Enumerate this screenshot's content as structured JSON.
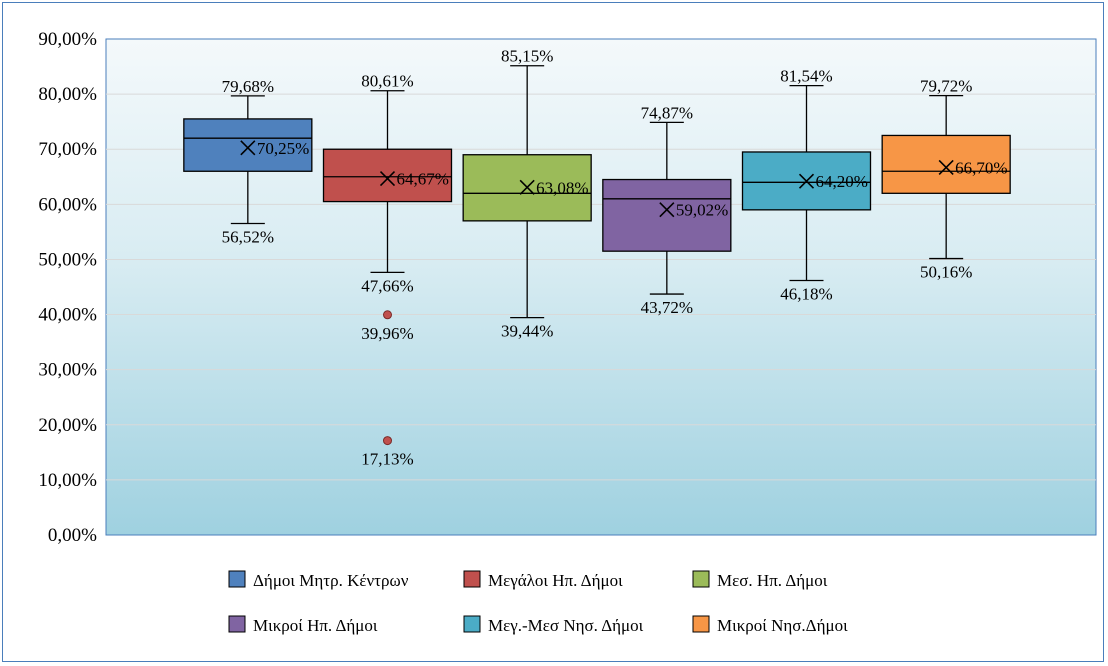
{
  "chart_data": {
    "type": "boxplot",
    "title": "",
    "xlabel": "",
    "ylabel": "",
    "ylim": [
      0,
      90
    ],
    "y_ticks": [
      "0,00%",
      "10,00%",
      "20,00%",
      "30,00%",
      "40,00%",
      "50,00%",
      "60,00%",
      "70,00%",
      "80,00%",
      "90,00%"
    ],
    "grid": true,
    "legend_position": "bottom",
    "series": [
      {
        "name": "Δήμοι Μητρ. Κέντρων",
        "color": "#4f81bd",
        "whisker_low": 56.52,
        "q1": 66.0,
        "median": 72.0,
        "q3": 75.5,
        "whisker_high": 79.68,
        "mean": 70.25,
        "outliers": [],
        "labels": {
          "whisker_high": "79,68%",
          "mean": "70,25%",
          "whisker_low": "56,52%"
        }
      },
      {
        "name": "Μεγάλοι Ηπ. Δήμοι",
        "color": "#c0504d",
        "whisker_low": 47.66,
        "q1": 60.5,
        "median": 65.0,
        "q3": 70.0,
        "whisker_high": 80.61,
        "mean": 64.67,
        "outliers": [
          39.96,
          17.13
        ],
        "labels": {
          "whisker_high": "80,61%",
          "mean": "64,67%",
          "whisker_low": "47,66%",
          "outliers": [
            "39,96%",
            "17,13%"
          ]
        }
      },
      {
        "name": "Μεσ. Ηπ. Δήμοι",
        "color": "#9bbb59",
        "whisker_low": 39.44,
        "q1": 57.0,
        "median": 62.0,
        "q3": 69.0,
        "whisker_high": 85.15,
        "mean": 63.08,
        "outliers": [],
        "labels": {
          "whisker_high": "85,15%",
          "mean": "63,08%",
          "whisker_low": "39,44%"
        }
      },
      {
        "name": "Μικροί Ηπ. Δήμοι",
        "color": "#8064a2",
        "whisker_low": 43.72,
        "q1": 51.5,
        "median": 61.0,
        "q3": 64.5,
        "whisker_high": 74.87,
        "mean": 59.02,
        "outliers": [],
        "labels": {
          "whisker_high": "74,87%",
          "mean": "59,02%",
          "whisker_low": "43,72%"
        }
      },
      {
        "name": "Μεγ.-Μεσ Νησ. Δήμοι",
        "color": "#4bacc6",
        "whisker_low": 46.18,
        "q1": 59.0,
        "median": 64.0,
        "q3": 69.5,
        "whisker_high": 81.54,
        "mean": 64.2,
        "outliers": [],
        "labels": {
          "whisker_high": "81,54%",
          "mean": "64,20%",
          "whisker_low": "46,18%"
        }
      },
      {
        "name": "Μικροί Νησ.Δήμοι",
        "color": "#f79646",
        "whisker_low": 50.16,
        "q1": 62.0,
        "median": 66.0,
        "q3": 72.5,
        "whisker_high": 79.72,
        "mean": 66.7,
        "outliers": [],
        "labels": {
          "whisker_high": "79,72%",
          "mean": "66,70%",
          "whisker_low": "50,16%"
        }
      }
    ]
  }
}
